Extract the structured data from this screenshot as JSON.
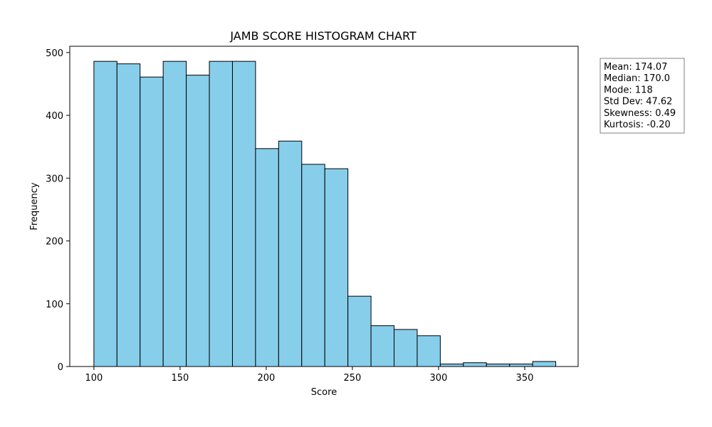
{
  "chart_data": {
    "type": "bar",
    "title": "JAMB SCORE HISTOGRAM CHART",
    "xlabel": "Score",
    "ylabel": "Frequency",
    "xlim": [
      86,
      381
    ],
    "ylim": [
      0,
      510
    ],
    "bin_width": 13.4,
    "bin_start": 100,
    "values": [
      486,
      482,
      461,
      486,
      464,
      486,
      486,
      347,
      359,
      322,
      315,
      112,
      65,
      59,
      49,
      4,
      6,
      4,
      4,
      8
    ],
    "x_ticks": [
      100,
      150,
      200,
      250,
      300,
      350
    ],
    "y_ticks": [
      0,
      100,
      200,
      300,
      400,
      500
    ],
    "bar_fill": "#87ceeb",
    "bar_edge": "#000000",
    "grid": false,
    "stats_box_placement": "outside-right-top",
    "stats": [
      "Mean: 174.07",
      "Median: 170.0",
      "Mode: 118",
      "Std Dev: 47.62",
      "Skewness: 0.49",
      "Kurtosis: -0.20"
    ]
  }
}
